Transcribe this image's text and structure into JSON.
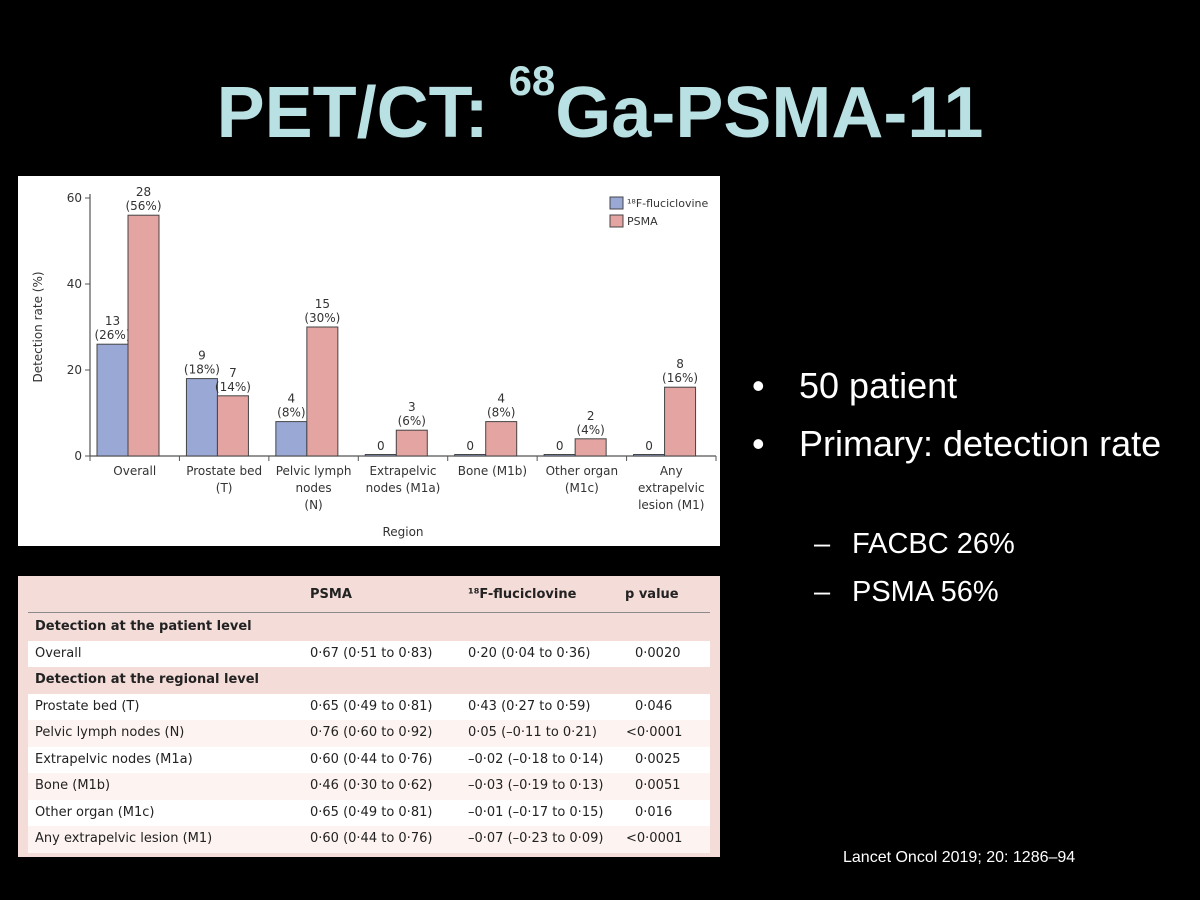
{
  "slide": {
    "title_prefix": "PET/CT: ",
    "title_sup": "68",
    "title_suffix": "Ga-PSMA-11",
    "citation": "Lancet Oncol 2019; 20: 1286–94"
  },
  "bullets": [
    {
      "text": "50 patient"
    },
    {
      "text": "Primary: detection rate",
      "subitems": [
        "FACBC 26%",
        "PSMA 56%"
      ]
    }
  ],
  "chart_data": {
    "type": "bar",
    "xlabel": "Region",
    "ylabel": "Detection rate (%)",
    "ylim": [
      0,
      60
    ],
    "yticks": [
      0,
      20,
      40,
      60
    ],
    "grid": false,
    "legend_position": "top-right",
    "categories": [
      [
        "Overall"
      ],
      [
        "Prostate bed",
        "(T)"
      ],
      [
        "Pelvic lymph",
        "nodes",
        "(N)"
      ],
      [
        "Extrapelvic",
        "nodes (M1a)"
      ],
      [
        "Bone (M1b)"
      ],
      [
        "Other organ",
        "(M1c)"
      ],
      [
        "Any",
        "extrapelvic",
        "lesion (M1)"
      ]
    ],
    "series": [
      {
        "name": "18F-fluciclovine",
        "legend_label": "¹⁸F-fluciclovine",
        "color": "#9aa8d6",
        "values": [
          26,
          18,
          8,
          0,
          0,
          0,
          0
        ],
        "counts": [
          "13",
          "9",
          "4",
          "0",
          "0",
          "0",
          "0"
        ],
        "pcts": [
          "(26%)",
          "(18%)",
          "(8%)",
          "",
          "",
          "",
          ""
        ]
      },
      {
        "name": "PSMA",
        "legend_label": "PSMA",
        "color": "#e3a4a2",
        "values": [
          56,
          14,
          30,
          6,
          8,
          4,
          16
        ],
        "counts": [
          "28",
          "7",
          "15",
          "3",
          "4",
          "2",
          "8"
        ],
        "pcts": [
          "(56%)",
          "(14%)",
          "(30%)",
          "(6%)",
          "(8%)",
          "(4%)",
          "(16%)"
        ]
      }
    ]
  },
  "table": {
    "headers": [
      "",
      "PSMA",
      "¹⁸F-fluciclovine",
      "p value"
    ],
    "sections": [
      {
        "title": "Detection at the patient level",
        "rows": [
          [
            "Overall",
            "0·67 (0·51 to 0·83)",
            "0·20 (0·04 to 0·36)",
            "0·0020"
          ]
        ]
      },
      {
        "title": "Detection at the regional level",
        "rows": [
          [
            "Prostate bed (T)",
            "0·65 (0·49 to 0·81)",
            "0·43 (0·27 to 0·59)",
            "0·046"
          ],
          [
            "Pelvic lymph nodes (N)",
            "0·76 (0·60 to 0·92)",
            "0·05 (–0·11 to 0·21)",
            "<0·0001"
          ],
          [
            "Extrapelvic nodes (M1a)",
            "0·60 (0·44 to 0·76)",
            "–0·02 (–0·18 to 0·14)",
            "0·0025"
          ],
          [
            "Bone (M1b)",
            "0·46 (0·30 to 0·62)",
            "–0·03 (–0·19 to 0·13)",
            "0·0051"
          ],
          [
            "Other organ (M1c)",
            "0·65 (0·49 to 0·81)",
            "–0·01 (–0·17 to 0·15)",
            "0·016"
          ],
          [
            "Any extrapelvic lesion (M1)",
            "0·60 (0·44 to 0·76)",
            "–0·07 (–0·23 to 0·09)",
            "<0·0001"
          ]
        ]
      }
    ]
  }
}
